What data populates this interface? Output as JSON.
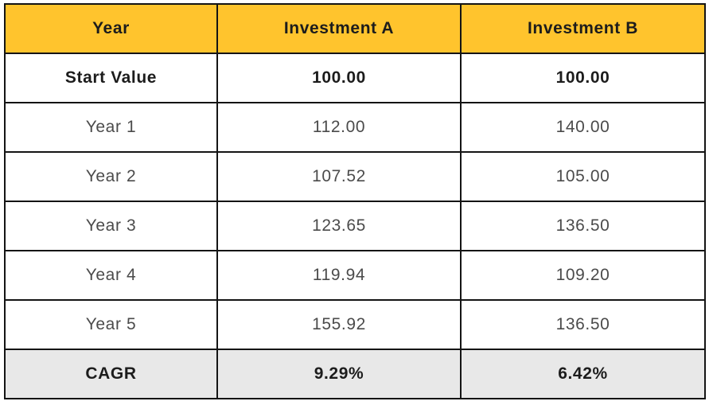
{
  "colors": {
    "header_bg": "#FFC42D",
    "footer_bg": "#E8E8E8",
    "border": "#141414",
    "text_primary": "#1c1c1c",
    "text_secondary": "#4b4b4b"
  },
  "chart_data": {
    "type": "table",
    "columns": [
      "Year",
      "Investment A",
      "Investment B"
    ],
    "rows": [
      [
        "Start Value",
        "100.00",
        "100.00"
      ],
      [
        "Year 1",
        "112.00",
        "140.00"
      ],
      [
        "Year 2",
        "107.52",
        "105.00"
      ],
      [
        "Year 3",
        "123.65",
        "136.50"
      ],
      [
        "Year 4",
        "119.94",
        "109.20"
      ],
      [
        "Year 5",
        "155.92",
        "136.50"
      ],
      [
        "CAGR",
        "9.29%",
        "6.42%"
      ]
    ]
  }
}
